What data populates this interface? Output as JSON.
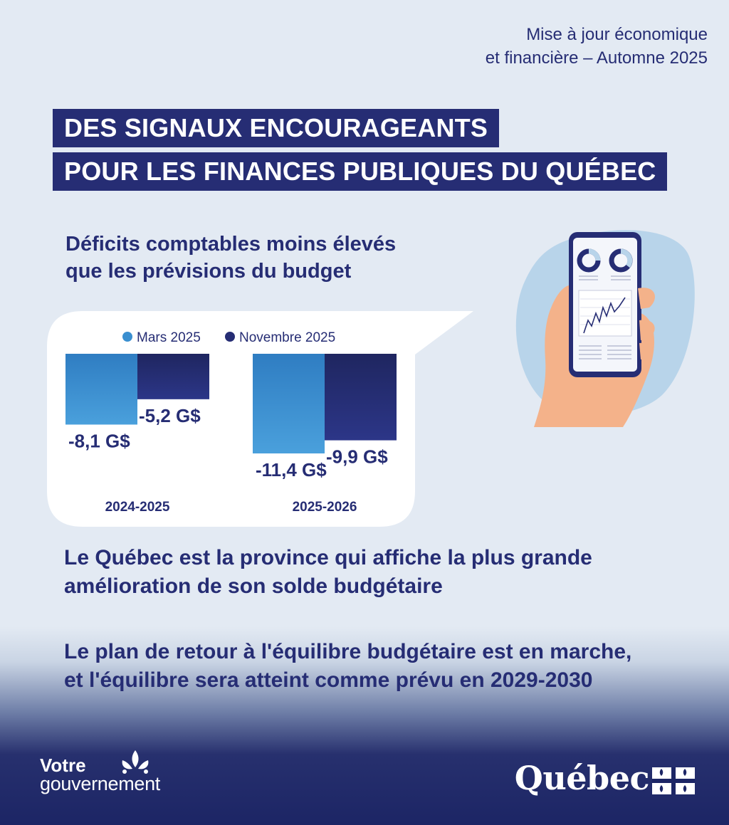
{
  "header": {
    "line1": "Mise à jour économique",
    "line2": "et financière – Automne 2025"
  },
  "title": {
    "line1": "DES SIGNAUX ENCOURAGEANTS",
    "line2": "POUR LES FINANCES PUBLIQUES DU QUÉBEC"
  },
  "subtitle": {
    "line1": "Déficits comptables moins élevés",
    "line2": "que les prévisions du budget"
  },
  "chart_data": {
    "type": "bar",
    "title": "Déficits comptables moins élevés que les prévisions du budget",
    "categories": [
      "2024-2025",
      "2025-2026"
    ],
    "series": [
      {
        "name": "Mars 2025",
        "values": [
          -8.1,
          -11.4
        ],
        "labels": [
          "-8,1 G$",
          "-11,4 G$"
        ],
        "color": "#3a8fd0"
      },
      {
        "name": "Novembre 2025",
        "values": [
          -5.2,
          -9.9
        ],
        "labels": [
          "-5,2 G$",
          "-9,9 G$"
        ],
        "color": "#262d74"
      }
    ],
    "unit": "G$",
    "ylim": [
      -11.4,
      0
    ],
    "legend": "top",
    "grid": false
  },
  "statements": {
    "first": {
      "line1": "Le Québec est la province qui affiche la plus grande",
      "line2": "amélioration de son solde budgétaire"
    },
    "second": {
      "line1": "Le plan de retour à l'équilibre budgétaire est en marche,",
      "line2": "et l'équilibre sera atteint comme prévu en 2029-2030"
    }
  },
  "footer": {
    "left_line1": "Votre",
    "left_line2": "gouvernement",
    "right_logo": "Québec"
  },
  "colors": {
    "navy": "#262d74",
    "blue": "#3a8fd0",
    "background": "#e3eaf3",
    "phone_blob": "#b8d4ea",
    "hand": "#f4b28a"
  }
}
